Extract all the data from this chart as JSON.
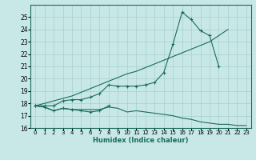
{
  "xlabel": "Humidex (Indice chaleur)",
  "x": [
    0,
    1,
    2,
    3,
    4,
    5,
    6,
    7,
    8,
    9,
    10,
    11,
    12,
    13,
    14,
    15,
    16,
    17,
    18,
    19,
    20,
    21,
    22,
    23
  ],
  "line_bottom": [
    17.8,
    17.7,
    17.4,
    17.6,
    17.5,
    17.5,
    17.5,
    17.5,
    17.7,
    17.6,
    17.3,
    17.4,
    17.3,
    17.2,
    17.1,
    17.0,
    16.8,
    16.7,
    16.5,
    16.4,
    16.3,
    16.3,
    16.2,
    16.2
  ],
  "line_data": [
    17.8,
    17.8,
    17.8,
    18.2,
    18.3,
    18.3,
    18.5,
    18.8,
    19.5,
    19.4,
    19.4,
    19.4,
    19.5,
    19.7,
    20.5,
    22.8,
    25.4,
    24.8,
    23.9,
    23.5,
    21.0,
    null,
    null,
    null
  ],
  "line_diag": [
    17.8,
    18.0,
    18.2,
    18.4,
    18.6,
    18.9,
    19.2,
    19.5,
    19.8,
    20.1,
    20.4,
    20.6,
    20.9,
    21.2,
    21.5,
    21.8,
    22.1,
    22.4,
    22.7,
    23.0,
    23.5,
    24.0,
    null,
    null
  ],
  "line_short": [
    17.8,
    17.7,
    17.4,
    17.6,
    17.5,
    17.4,
    17.3,
    17.4,
    17.8,
    null,
    null,
    null,
    null,
    null,
    null,
    null,
    null,
    null,
    null,
    null,
    null,
    null,
    null,
    null
  ],
  "color": "#1a6b5a",
  "bg_color": "#c8e8e8",
  "grid_color": "#a8cccc",
  "ylim": [
    16,
    26
  ],
  "yticks": [
    16,
    17,
    18,
    19,
    20,
    21,
    22,
    23,
    24,
    25
  ],
  "xlim": [
    -0.5,
    23.5
  ],
  "xtick_labels": [
    "0",
    "1",
    "2",
    "3",
    "4",
    "5",
    "6",
    "7",
    "8",
    "9",
    "10",
    "11",
    "12",
    "13",
    "14",
    "15",
    "16",
    "17",
    "18",
    "19",
    "20",
    "21",
    "22",
    "23"
  ]
}
